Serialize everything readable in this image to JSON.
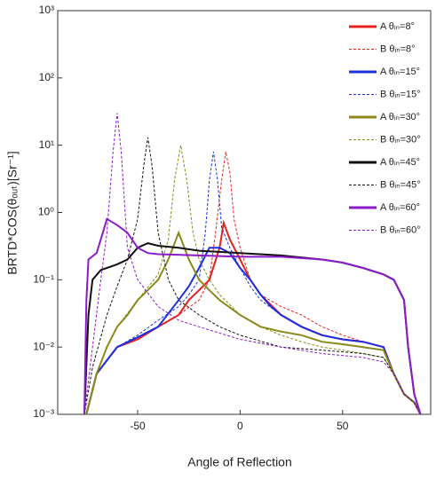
{
  "chart_data": {
    "type": "line",
    "x_label": "Angle of Reflection",
    "y_label": "BRTD*COS(θₒᵤₜ)[Sr⁻¹]",
    "xlim": [
      -89,
      93
    ],
    "xticks": [
      -50,
      0,
      50
    ],
    "ylim": [
      0.001,
      1000
    ],
    "log_y": true,
    "yticks": [
      {
        "value": 1000,
        "label": "10³"
      },
      {
        "value": 100,
        "label": "10²"
      },
      {
        "value": 10,
        "label": "10¹"
      },
      {
        "value": 1,
        "label": "10⁰"
      },
      {
        "value": 0.1,
        "label": "10⁻¹"
      },
      {
        "value": 0.01,
        "label": "10⁻²"
      },
      {
        "value": 0.001,
        "label": "10⁻³"
      }
    ],
    "series": [
      {
        "name": "A  θᵢₙ=8°",
        "color": "#e8201e",
        "dashed": false,
        "x": [
          -75,
          -70,
          -60,
          -50,
          -40,
          -30,
          -25,
          -20,
          -15,
          -10,
          -8,
          -5,
          0,
          5,
          10,
          20,
          30,
          40,
          50,
          60,
          70,
          75,
          80,
          85,
          88
        ],
        "values": [
          0.001,
          0.004,
          0.01,
          0.013,
          0.02,
          0.03,
          0.05,
          0.07,
          0.1,
          0.3,
          0.7,
          0.4,
          0.2,
          0.1,
          0.06,
          0.03,
          0.02,
          0.015,
          0.013,
          0.012,
          0.01,
          0.004,
          0.002,
          0.0015,
          0.001
        ]
      },
      {
        "name": "B  θᵢₙ=8°",
        "color": "#e8201e",
        "dashed": true,
        "x": [
          -75,
          -70,
          -60,
          -50,
          -40,
          -30,
          -20,
          -15,
          -12,
          -9,
          -7,
          -5,
          -3,
          0,
          5,
          10,
          20,
          30,
          40,
          50,
          60,
          70,
          75,
          80,
          85,
          88
        ],
        "values": [
          0.001,
          0.004,
          0.01,
          0.014,
          0.02,
          0.03,
          0.05,
          0.1,
          0.5,
          3,
          8,
          4,
          0.8,
          0.3,
          0.1,
          0.06,
          0.04,
          0.03,
          0.02,
          0.015,
          0.012,
          0.01,
          0.004,
          0.002,
          0.0015,
          0.001
        ]
      },
      {
        "name": "A  θᵢₙ=15°",
        "color": "#1a2fe0",
        "dashed": false,
        "x": [
          -75,
          -70,
          -60,
          -50,
          -40,
          -30,
          -25,
          -20,
          -15,
          -10,
          -5,
          0,
          5,
          10,
          15,
          20,
          30,
          40,
          50,
          60,
          70,
          75,
          80,
          85,
          88
        ],
        "values": [
          0.001,
          0.004,
          0.01,
          0.014,
          0.02,
          0.05,
          0.08,
          0.15,
          0.3,
          0.3,
          0.25,
          0.15,
          0.1,
          0.06,
          0.04,
          0.03,
          0.02,
          0.015,
          0.013,
          0.012,
          0.01,
          0.004,
          0.002,
          0.0015,
          0.001
        ]
      },
      {
        "name": "B  θᵢₙ=15°",
        "color": "#1a2fe0",
        "dashed": true,
        "x": [
          -75,
          -70,
          -60,
          -50,
          -40,
          -30,
          -25,
          -20,
          -17,
          -15,
          -13,
          -11,
          -9,
          -5,
          0,
          5,
          10,
          20,
          30,
          40,
          50,
          60,
          70,
          75,
          80,
          85,
          88
        ],
        "values": [
          0.001,
          0.004,
          0.01,
          0.015,
          0.025,
          0.04,
          0.06,
          0.1,
          0.5,
          3,
          8,
          3,
          0.6,
          0.3,
          0.15,
          0.08,
          0.05,
          0.03,
          0.02,
          0.015,
          0.013,
          0.012,
          0.01,
          0.004,
          0.002,
          0.0015,
          0.001
        ]
      },
      {
        "name": "A  θᵢₙ=30°",
        "color": "#8a8a1a",
        "dashed": false,
        "x": [
          -75,
          -70,
          -65,
          -60,
          -55,
          -50,
          -45,
          -40,
          -35,
          -30,
          -25,
          -20,
          -15,
          -10,
          0,
          10,
          20,
          30,
          40,
          50,
          60,
          70,
          75,
          80,
          85,
          88
        ],
        "values": [
          0.001,
          0.004,
          0.01,
          0.02,
          0.03,
          0.05,
          0.07,
          0.1,
          0.2,
          0.5,
          0.2,
          0.1,
          0.07,
          0.05,
          0.03,
          0.02,
          0.017,
          0.015,
          0.012,
          0.011,
          0.01,
          0.009,
          0.004,
          0.002,
          0.0015,
          0.001
        ]
      },
      {
        "name": "B  θᵢₙ=30°",
        "color": "#8a8a1a",
        "dashed": true,
        "x": [
          -75,
          -70,
          -65,
          -60,
          -50,
          -40,
          -35,
          -32,
          -29,
          -26,
          -23,
          -20,
          -15,
          -10,
          0,
          10,
          20,
          30,
          40,
          50,
          60,
          70,
          75,
          80,
          85,
          88
        ],
        "values": [
          0.001,
          0.004,
          0.01,
          0.02,
          0.05,
          0.12,
          0.4,
          3,
          10,
          3,
          0.5,
          0.2,
          0.1,
          0.06,
          0.03,
          0.02,
          0.015,
          0.012,
          0.01,
          0.009,
          0.008,
          0.007,
          0.004,
          0.002,
          0.0015,
          0.001
        ]
      },
      {
        "name": "A  θᵢₙ=45°",
        "color": "#111111",
        "dashed": false,
        "x": [
          -76,
          -74,
          -72,
          -68,
          -65,
          -60,
          -55,
          -50,
          -45,
          -40,
          -30,
          -20,
          0,
          20,
          40,
          50,
          60,
          70,
          75,
          80,
          82,
          85,
          88
        ],
        "values": [
          0.001,
          0.03,
          0.1,
          0.14,
          0.15,
          0.17,
          0.2,
          0.3,
          0.35,
          0.32,
          0.3,
          0.27,
          0.25,
          0.23,
          0.2,
          0.18,
          0.15,
          0.12,
          0.1,
          0.05,
          0.01,
          0.002,
          0.001
        ]
      },
      {
        "name": "B  θᵢₙ=45°",
        "color": "#111111",
        "dashed": true,
        "x": [
          -76,
          -72,
          -65,
          -60,
          -55,
          -50,
          -47,
          -45,
          -43,
          -40,
          -35,
          -30,
          -20,
          -10,
          0,
          20,
          40,
          60,
          70,
          75,
          80,
          85,
          88
        ],
        "values": [
          0.001,
          0.005,
          0.03,
          0.08,
          0.2,
          0.8,
          5,
          13,
          5,
          0.5,
          0.1,
          0.05,
          0.03,
          0.02,
          0.015,
          0.01,
          0.009,
          0.008,
          0.007,
          0.004,
          0.002,
          0.0015,
          0.001
        ]
      },
      {
        "name": "A  θᵢₙ=60°",
        "color": "#8b1ac8",
        "dashed": false,
        "x": [
          -76,
          -75,
          -74,
          -70,
          -67,
          -65,
          -60,
          -55,
          -50,
          -45,
          -40,
          -20,
          0,
          20,
          40,
          50,
          60,
          70,
          75,
          80,
          82,
          85,
          88
        ],
        "values": [
          0.001,
          0.05,
          0.2,
          0.25,
          0.5,
          0.8,
          0.65,
          0.5,
          0.3,
          0.25,
          0.24,
          0.23,
          0.22,
          0.22,
          0.2,
          0.18,
          0.15,
          0.12,
          0.1,
          0.05,
          0.01,
          0.002,
          0.001
        ]
      },
      {
        "name": "B  θᵢₙ=60°",
        "color": "#8b1ac8",
        "dashed": true,
        "x": [
          -76,
          -72,
          -68,
          -65,
          -62,
          -60,
          -58,
          -55,
          -50,
          -40,
          -30,
          -20,
          0,
          20,
          40,
          60,
          70,
          75,
          80,
          85,
          88
        ],
        "values": [
          0.001,
          0.01,
          0.1,
          0.5,
          8,
          30,
          8,
          0.3,
          0.1,
          0.04,
          0.025,
          0.02,
          0.013,
          0.01,
          0.008,
          0.007,
          0.006,
          0.004,
          0.002,
          0.0015,
          0.001
        ]
      }
    ]
  }
}
